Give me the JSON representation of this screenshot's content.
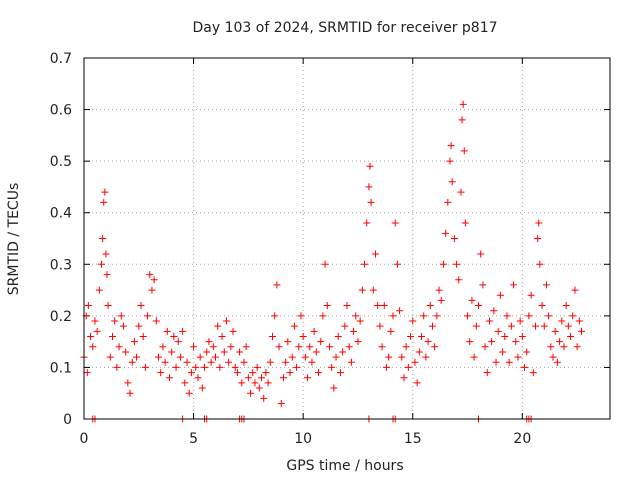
{
  "chart_data": {
    "type": "scatter",
    "title": "Day 103 of 2024, SRMTID for receiver p817",
    "xlabel": "GPS time / hours",
    "ylabel": "SRMTID / TECUs",
    "xlim": [
      0,
      24
    ],
    "ylim": [
      0,
      0.7
    ],
    "x_ticks": [
      0,
      5,
      10,
      15,
      20
    ],
    "x_tick_labels": [
      "0",
      "5",
      "10",
      "15",
      "20"
    ],
    "y_ticks": [
      0,
      0.1,
      0.2,
      0.3,
      0.4,
      0.5,
      0.6,
      0.7
    ],
    "y_tick_labels": [
      "0",
      "0.1",
      "0.2",
      "0.3",
      "0.4",
      "0.5",
      "0.6",
      "0.7"
    ],
    "grid": true,
    "marker": "+",
    "color": "#ff0000",
    "series": [
      {
        "name": "SRMTID",
        "points": [
          [
            0.0,
            0.12
          ],
          [
            0.1,
            0.2
          ],
          [
            0.15,
            0.09
          ],
          [
            0.2,
            0.22
          ],
          [
            0.3,
            0.16
          ],
          [
            0.4,
            0.14
          ],
          [
            0.5,
            0.19
          ],
          [
            0.6,
            0.17
          ],
          [
            0.7,
            0.25
          ],
          [
            0.8,
            0.3
          ],
          [
            0.85,
            0.35
          ],
          [
            0.9,
            0.42
          ],
          [
            0.95,
            0.44
          ],
          [
            1.0,
            0.32
          ],
          [
            1.05,
            0.28
          ],
          [
            1.1,
            0.22
          ],
          [
            1.2,
            0.12
          ],
          [
            1.3,
            0.16
          ],
          [
            1.4,
            0.19
          ],
          [
            1.5,
            0.1
          ],
          [
            1.6,
            0.14
          ],
          [
            1.7,
            0.2
          ],
          [
            1.8,
            0.18
          ],
          [
            1.9,
            0.13
          ],
          [
            2.0,
            0.07
          ],
          [
            2.1,
            0.05
          ],
          [
            2.2,
            0.11
          ],
          [
            2.3,
            0.15
          ],
          [
            2.4,
            0.12
          ],
          [
            2.5,
            0.18
          ],
          [
            2.6,
            0.22
          ],
          [
            2.7,
            0.16
          ],
          [
            2.8,
            0.1
          ],
          [
            2.9,
            0.2
          ],
          [
            3.0,
            0.28
          ],
          [
            3.1,
            0.25
          ],
          [
            3.2,
            0.27
          ],
          [
            3.3,
            0.19
          ],
          [
            3.4,
            0.12
          ],
          [
            3.5,
            0.09
          ],
          [
            3.6,
            0.14
          ],
          [
            3.7,
            0.11
          ],
          [
            3.8,
            0.17
          ],
          [
            3.9,
            0.08
          ],
          [
            4.0,
            0.13
          ],
          [
            4.1,
            0.16
          ],
          [
            4.2,
            0.1
          ],
          [
            4.3,
            0.15
          ],
          [
            4.4,
            0.12
          ],
          [
            4.5,
            0.17
          ],
          [
            4.6,
            0.07
          ],
          [
            4.7,
            0.11
          ],
          [
            4.8,
            0.05
          ],
          [
            4.9,
            0.09
          ],
          [
            5.0,
            0.14
          ],
          [
            5.1,
            0.1
          ],
          [
            5.2,
            0.08
          ],
          [
            5.3,
            0.12
          ],
          [
            5.4,
            0.06
          ],
          [
            5.5,
            0.1
          ],
          [
            5.6,
            0.13
          ],
          [
            5.7,
            0.15
          ],
          [
            5.8,
            0.11
          ],
          [
            5.9,
            0.14
          ],
          [
            6.0,
            0.12
          ],
          [
            6.1,
            0.18
          ],
          [
            6.2,
            0.1
          ],
          [
            6.3,
            0.16
          ],
          [
            6.4,
            0.13
          ],
          [
            6.5,
            0.19
          ],
          [
            6.6,
            0.11
          ],
          [
            6.7,
            0.14
          ],
          [
            6.8,
            0.17
          ],
          [
            6.9,
            0.1
          ],
          [
            7.0,
            0.09
          ],
          [
            7.1,
            0.13
          ],
          [
            7.2,
            0.07
          ],
          [
            7.3,
            0.11
          ],
          [
            7.4,
            0.14
          ],
          [
            7.5,
            0.08
          ],
          [
            7.6,
            0.05
          ],
          [
            7.7,
            0.09
          ],
          [
            7.8,
            0.07
          ],
          [
            7.9,
            0.1
          ],
          [
            8.0,
            0.06
          ],
          [
            8.1,
            0.08
          ],
          [
            8.2,
            0.04
          ],
          [
            8.3,
            0.09
          ],
          [
            8.4,
            0.07
          ],
          [
            8.5,
            0.11
          ],
          [
            8.6,
            0.16
          ],
          [
            8.7,
            0.2
          ],
          [
            8.8,
            0.26
          ],
          [
            8.9,
            0.14
          ],
          [
            9.0,
            0.03
          ],
          [
            9.1,
            0.08
          ],
          [
            9.2,
            0.11
          ],
          [
            9.3,
            0.15
          ],
          [
            9.4,
            0.09
          ],
          [
            9.5,
            0.12
          ],
          [
            9.6,
            0.18
          ],
          [
            9.7,
            0.1
          ],
          [
            9.8,
            0.14
          ],
          [
            9.9,
            0.2
          ],
          [
            10.0,
            0.16
          ],
          [
            10.1,
            0.12
          ],
          [
            10.2,
            0.08
          ],
          [
            10.3,
            0.14
          ],
          [
            10.4,
            0.11
          ],
          [
            10.5,
            0.17
          ],
          [
            10.6,
            0.13
          ],
          [
            10.7,
            0.09
          ],
          [
            10.8,
            0.15
          ],
          [
            10.9,
            0.2
          ],
          [
            11.0,
            0.3
          ],
          [
            11.1,
            0.22
          ],
          [
            11.2,
            0.14
          ],
          [
            11.3,
            0.1
          ],
          [
            11.4,
            0.06
          ],
          [
            11.5,
            0.12
          ],
          [
            11.6,
            0.16
          ],
          [
            11.7,
            0.09
          ],
          [
            11.8,
            0.13
          ],
          [
            11.9,
            0.18
          ],
          [
            12.0,
            0.22
          ],
          [
            12.1,
            0.14
          ],
          [
            12.2,
            0.11
          ],
          [
            12.3,
            0.17
          ],
          [
            12.4,
            0.2
          ],
          [
            12.5,
            0.15
          ],
          [
            12.6,
            0.19
          ],
          [
            12.7,
            0.25
          ],
          [
            12.8,
            0.3
          ],
          [
            12.9,
            0.38
          ],
          [
            13.0,
            0.45
          ],
          [
            13.05,
            0.49
          ],
          [
            13.1,
            0.42
          ],
          [
            13.2,
            0.25
          ],
          [
            13.3,
            0.32
          ],
          [
            13.4,
            0.22
          ],
          [
            13.5,
            0.18
          ],
          [
            13.6,
            0.14
          ],
          [
            13.7,
            0.22
          ],
          [
            13.8,
            0.1
          ],
          [
            13.9,
            0.12
          ],
          [
            14.0,
            0.17
          ],
          [
            14.1,
            0.2
          ],
          [
            14.2,
            0.38
          ],
          [
            14.3,
            0.3
          ],
          [
            14.4,
            0.21
          ],
          [
            14.5,
            0.12
          ],
          [
            14.6,
            0.08
          ],
          [
            14.7,
            0.14
          ],
          [
            14.8,
            0.1
          ],
          [
            14.9,
            0.16
          ],
          [
            15.0,
            0.19
          ],
          [
            15.1,
            0.11
          ],
          [
            15.2,
            0.07
          ],
          [
            15.3,
            0.13
          ],
          [
            15.4,
            0.16
          ],
          [
            15.5,
            0.2
          ],
          [
            15.6,
            0.12
          ],
          [
            15.7,
            0.15
          ],
          [
            15.8,
            0.22
          ],
          [
            15.9,
            0.18
          ],
          [
            16.0,
            0.14
          ],
          [
            16.1,
            0.2
          ],
          [
            16.2,
            0.25
          ],
          [
            16.3,
            0.23
          ],
          [
            16.4,
            0.3
          ],
          [
            16.5,
            0.36
          ],
          [
            16.6,
            0.42
          ],
          [
            16.7,
            0.5
          ],
          [
            16.75,
            0.53
          ],
          [
            16.8,
            0.46
          ],
          [
            16.9,
            0.35
          ],
          [
            17.0,
            0.3
          ],
          [
            17.1,
            0.27
          ],
          [
            17.2,
            0.44
          ],
          [
            17.25,
            0.58
          ],
          [
            17.3,
            0.61
          ],
          [
            17.35,
            0.52
          ],
          [
            17.4,
            0.38
          ],
          [
            17.5,
            0.2
          ],
          [
            17.6,
            0.15
          ],
          [
            17.7,
            0.23
          ],
          [
            17.8,
            0.12
          ],
          [
            17.9,
            0.18
          ],
          [
            18.0,
            0.22
          ],
          [
            18.1,
            0.32
          ],
          [
            18.2,
            0.26
          ],
          [
            18.3,
            0.14
          ],
          [
            18.4,
            0.09
          ],
          [
            18.5,
            0.19
          ],
          [
            18.6,
            0.15
          ],
          [
            18.7,
            0.21
          ],
          [
            18.8,
            0.11
          ],
          [
            18.9,
            0.17
          ],
          [
            19.0,
            0.24
          ],
          [
            19.1,
            0.13
          ],
          [
            19.2,
            0.16
          ],
          [
            19.3,
            0.2
          ],
          [
            19.4,
            0.11
          ],
          [
            19.5,
            0.18
          ],
          [
            19.6,
            0.26
          ],
          [
            19.7,
            0.15
          ],
          [
            19.8,
            0.12
          ],
          [
            19.9,
            0.19
          ],
          [
            20.0,
            0.16
          ],
          [
            20.1,
            0.1
          ],
          [
            20.2,
            0.13
          ],
          [
            20.3,
            0.2
          ],
          [
            20.4,
            0.24
          ],
          [
            20.5,
            0.09
          ],
          [
            20.6,
            0.18
          ],
          [
            20.7,
            0.35
          ],
          [
            20.75,
            0.38
          ],
          [
            20.8,
            0.3
          ],
          [
            20.9,
            0.22
          ],
          [
            21.0,
            0.18
          ],
          [
            21.1,
            0.26
          ],
          [
            21.2,
            0.2
          ],
          [
            21.3,
            0.14
          ],
          [
            21.4,
            0.12
          ],
          [
            21.5,
            0.17
          ],
          [
            21.6,
            0.11
          ],
          [
            21.7,
            0.15
          ],
          [
            21.8,
            0.19
          ],
          [
            21.9,
            0.14
          ],
          [
            22.0,
            0.22
          ],
          [
            22.1,
            0.18
          ],
          [
            22.2,
            0.16
          ],
          [
            22.3,
            0.2
          ],
          [
            22.4,
            0.25
          ],
          [
            22.5,
            0.14
          ],
          [
            22.6,
            0.19
          ],
          [
            22.7,
            0.17
          ]
        ],
        "zero_markers": [
          0.4,
          0.5,
          4.5,
          5.5,
          5.6,
          7.1,
          7.2,
          7.3,
          13.0,
          14.1,
          14.2,
          18.0,
          20.2,
          20.3,
          20.4
        ]
      }
    ]
  }
}
